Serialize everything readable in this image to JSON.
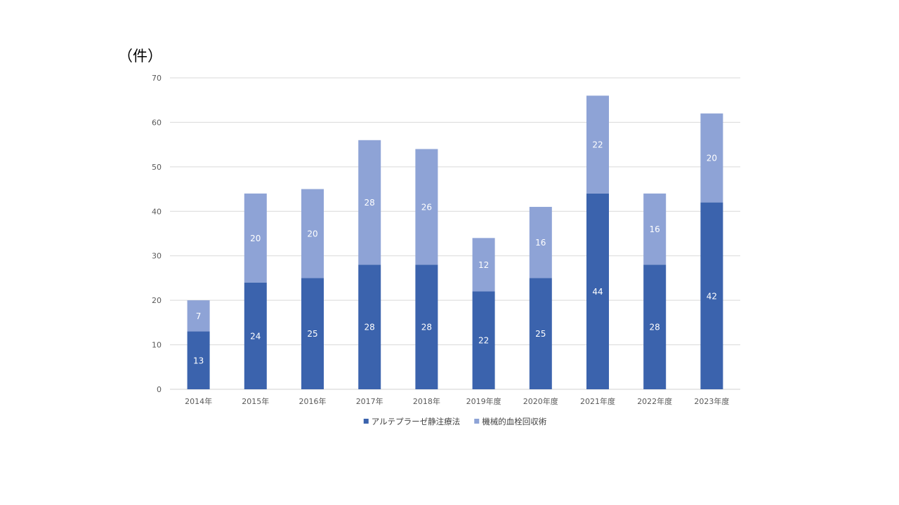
{
  "unit_label": "（件）",
  "chart_data": {
    "type": "bar",
    "stacked": true,
    "categories": [
      "2014年",
      "2015年",
      "2016年",
      "2017年",
      "2018年",
      "2019年度",
      "2020年度",
      "2021年度",
      "2022年度",
      "2023年度"
    ],
    "series": [
      {
        "name": "アルテプラーゼ静注療法",
        "color": "#3b63ad",
        "values": [
          13,
          24,
          25,
          28,
          28,
          22,
          25,
          44,
          28,
          42
        ]
      },
      {
        "name": "機械的血栓回収術",
        "color": "#8ea3d6",
        "values": [
          7,
          20,
          20,
          28,
          26,
          12,
          16,
          22,
          16,
          20
        ]
      }
    ],
    "ylim": [
      0,
      70
    ],
    "yticks": [
      0,
      10,
      20,
      30,
      40,
      50,
      60,
      70
    ],
    "grid": true,
    "legend_position": "bottom",
    "data_labels": true
  }
}
